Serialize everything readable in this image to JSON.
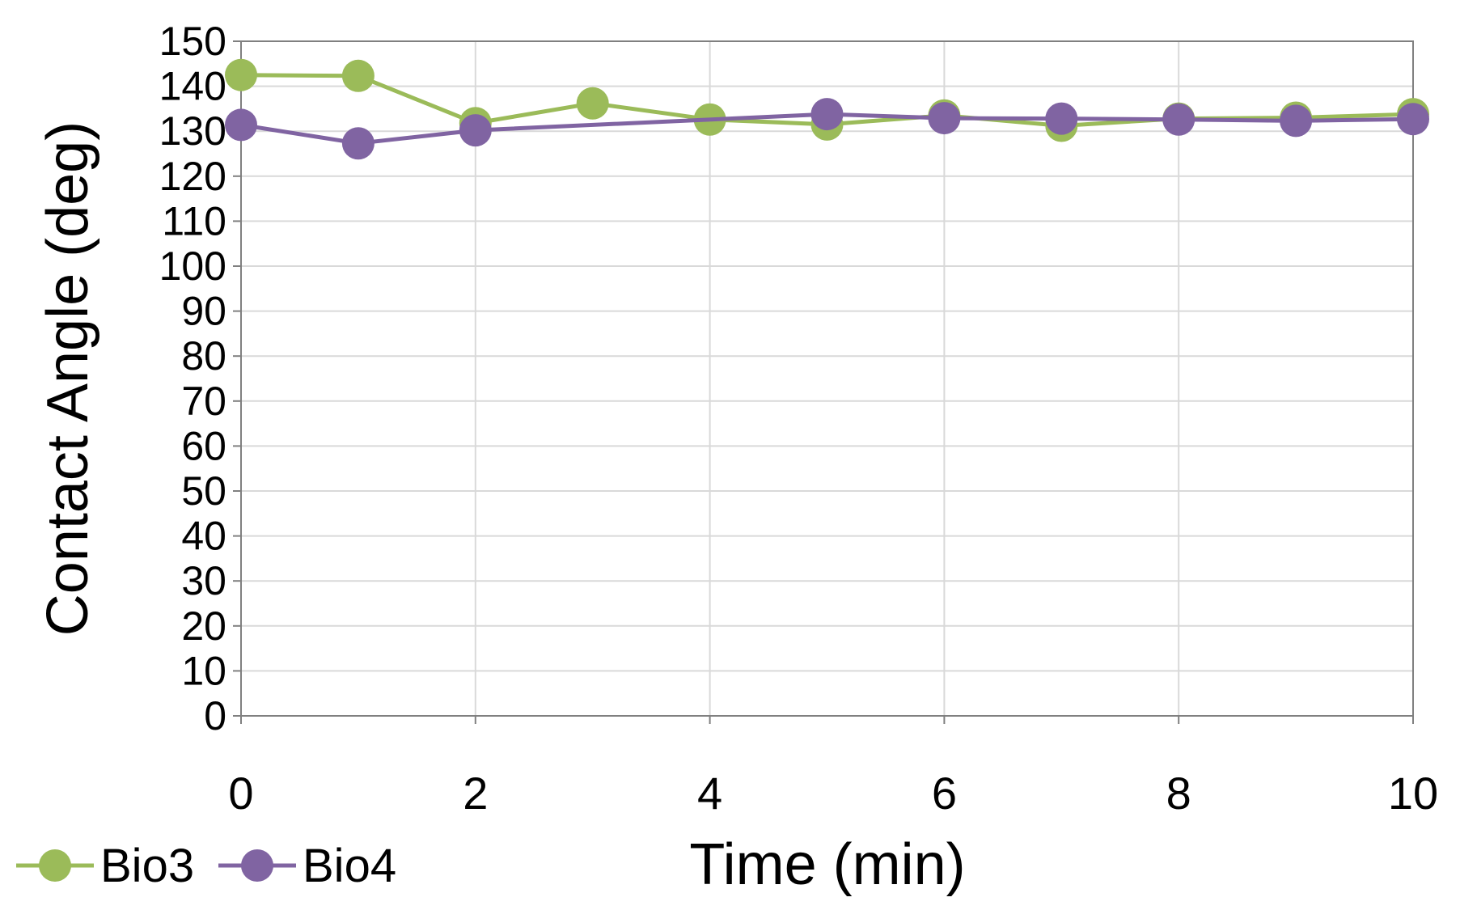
{
  "chart_data": {
    "type": "line",
    "title": "",
    "xlabel": "Time (min)",
    "ylabel": "Contact Angle (deg)",
    "xlim": [
      0,
      10
    ],
    "ylim": [
      0,
      150
    ],
    "x_ticks": [
      "0",
      "2",
      "4",
      "6",
      "8",
      "10"
    ],
    "y_ticks": [
      "0",
      "10",
      "20",
      "30",
      "40",
      "50",
      "60",
      "70",
      "80",
      "90",
      "100",
      "110",
      "120",
      "130",
      "140",
      "150"
    ],
    "grid": true,
    "legend_position": "bottom-left",
    "series": [
      {
        "name": "Bio3",
        "color": "#9bbb59",
        "marker": "circle",
        "x": [
          0,
          1,
          2,
          3,
          4,
          5,
          6,
          7,
          8,
          9,
          10
        ],
        "values": [
          142.5,
          142.3,
          131.8,
          136.2,
          132.6,
          131.5,
          133.5,
          131.2,
          132.8,
          133.0,
          133.8
        ]
      },
      {
        "name": "Bio4",
        "color": "#8064a2",
        "marker": "circle",
        "x": [
          0,
          1,
          2,
          5,
          6,
          7,
          8,
          9,
          10
        ],
        "values": [
          131.4,
          127.3,
          130.2,
          133.8,
          132.9,
          132.8,
          132.6,
          132.3,
          132.7
        ]
      }
    ]
  }
}
